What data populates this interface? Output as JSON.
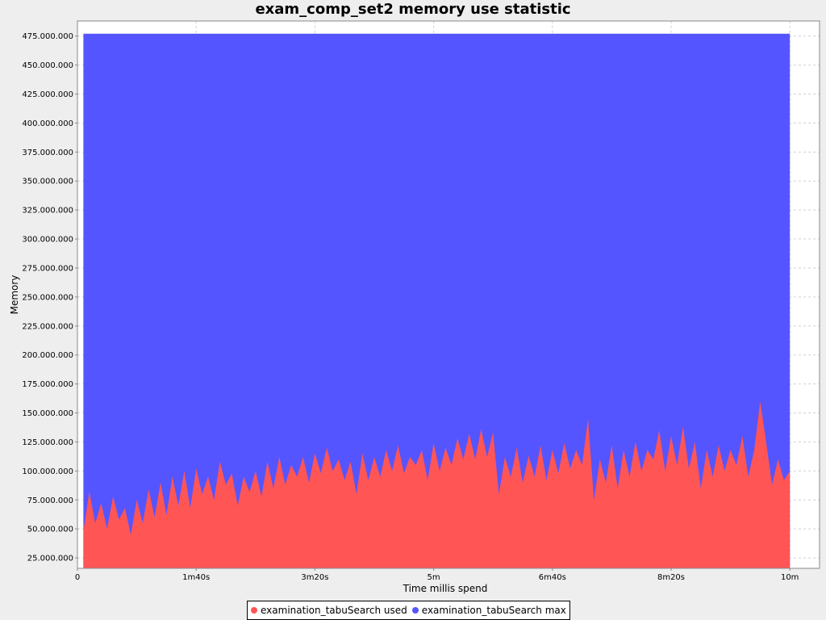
{
  "chart_data": {
    "type": "area",
    "title": "exam_comp_set2 memory use statistic",
    "xlabel": "Time millis spend",
    "ylabel": "Memory",
    "x_unit": "ms",
    "xlim": [
      0,
      625000
    ],
    "ylim": [
      16000000,
      488000000
    ],
    "x_ticks": [
      {
        "value": 0,
        "label": "0"
      },
      {
        "value": 100000,
        "label": "1m40s"
      },
      {
        "value": 200000,
        "label": "3m20s"
      },
      {
        "value": 300000,
        "label": "5m"
      },
      {
        "value": 400000,
        "label": "6m40s"
      },
      {
        "value": 500000,
        "label": "8m20s"
      },
      {
        "value": 600000,
        "label": "10m"
      }
    ],
    "y_ticks": [
      {
        "value": 25000000,
        "label": "25.000.000"
      },
      {
        "value": 50000000,
        "label": "50.000.000"
      },
      {
        "value": 75000000,
        "label": "75.000.000"
      },
      {
        "value": 100000000,
        "label": "100.000.000"
      },
      {
        "value": 125000000,
        "label": "125.000.000"
      },
      {
        "value": 150000000,
        "label": "150.000.000"
      },
      {
        "value": 175000000,
        "label": "175.000.000"
      },
      {
        "value": 200000000,
        "label": "200.000.000"
      },
      {
        "value": 225000000,
        "label": "225.000.000"
      },
      {
        "value": 250000000,
        "label": "250.000.000"
      },
      {
        "value": 275000000,
        "label": "275.000.000"
      },
      {
        "value": 300000000,
        "label": "300.000.000"
      },
      {
        "value": 325000000,
        "label": "325.000.000"
      },
      {
        "value": 350000000,
        "label": "350.000.000"
      },
      {
        "value": 375000000,
        "label": "375.000.000"
      },
      {
        "value": 400000000,
        "label": "400.000.000"
      },
      {
        "value": 425000000,
        "label": "425.000.000"
      },
      {
        "value": 450000000,
        "label": "450.000.000"
      },
      {
        "value": 475000000,
        "label": "475.000.000"
      }
    ],
    "grid": true,
    "legend_position": "bottom",
    "series": [
      {
        "name": "examination_tabuSearch max",
        "color": "#5555ff",
        "x": [
          5000,
          600000
        ],
        "values": [
          477000000,
          477000000
        ]
      },
      {
        "name": "examination_tabuSearch used",
        "color": "#ff5555",
        "x": [
          5000,
          10000,
          15000,
          20000,
          25000,
          30000,
          35000,
          40000,
          45000,
          50000,
          55000,
          60000,
          65000,
          70000,
          75000,
          80000,
          85000,
          90000,
          95000,
          100000,
          105000,
          110000,
          115000,
          120000,
          125000,
          130000,
          135000,
          140000,
          145000,
          150000,
          155000,
          160000,
          165000,
          170000,
          175000,
          180000,
          185000,
          190000,
          195000,
          200000,
          205000,
          210000,
          215000,
          220000,
          225000,
          230000,
          235000,
          240000,
          245000,
          250000,
          255000,
          260000,
          265000,
          270000,
          275000,
          280000,
          285000,
          290000,
          295000,
          300000,
          305000,
          310000,
          315000,
          320000,
          325000,
          330000,
          335000,
          340000,
          345000,
          350000,
          355000,
          360000,
          365000,
          370000,
          375000,
          380000,
          385000,
          390000,
          395000,
          400000,
          405000,
          410000,
          415000,
          420000,
          425000,
          430000,
          435000,
          440000,
          445000,
          450000,
          455000,
          460000,
          465000,
          470000,
          475000,
          480000,
          485000,
          490000,
          495000,
          500000,
          505000,
          510000,
          515000,
          520000,
          525000,
          530000,
          535000,
          540000,
          545000,
          550000,
          555000,
          560000,
          565000,
          570000,
          575000,
          580000,
          585000,
          590000,
          595000,
          600000
        ],
        "values": [
          48000000,
          82000000,
          55000000,
          72000000,
          50000000,
          78000000,
          58000000,
          68000000,
          45000000,
          75000000,
          55000000,
          84000000,
          60000000,
          90000000,
          62000000,
          95000000,
          70000000,
          100000000,
          68000000,
          102000000,
          80000000,
          95000000,
          75000000,
          108000000,
          88000000,
          98000000,
          70000000,
          95000000,
          82000000,
          100000000,
          78000000,
          108000000,
          85000000,
          112000000,
          88000000,
          105000000,
          95000000,
          112000000,
          90000000,
          115000000,
          98000000,
          120000000,
          100000000,
          110000000,
          92000000,
          108000000,
          80000000,
          115000000,
          92000000,
          112000000,
          95000000,
          118000000,
          100000000,
          122000000,
          98000000,
          112000000,
          105000000,
          118000000,
          92000000,
          124000000,
          100000000,
          120000000,
          105000000,
          128000000,
          110000000,
          132000000,
          110000000,
          136000000,
          112000000,
          133000000,
          80000000,
          112000000,
          95000000,
          120000000,
          90000000,
          113000000,
          95000000,
          122000000,
          92000000,
          118000000,
          98000000,
          124000000,
          102000000,
          118000000,
          105000000,
          145000000,
          75000000,
          110000000,
          90000000,
          122000000,
          85000000,
          118000000,
          95000000,
          125000000,
          100000000,
          118000000,
          110000000,
          135000000,
          100000000,
          130000000,
          105000000,
          138000000,
          102000000,
          125000000,
          85000000,
          118000000,
          95000000,
          122000000,
          100000000,
          118000000,
          105000000,
          130000000,
          95000000,
          118000000,
          160000000,
          125000000,
          88000000,
          110000000,
          92000000,
          100000000
        ]
      }
    ]
  },
  "legend": {
    "items": [
      {
        "label": "examination_tabuSearch used",
        "color": "#ff5555"
      },
      {
        "label": "examination_tabuSearch max",
        "color": "#5555ff"
      }
    ]
  }
}
